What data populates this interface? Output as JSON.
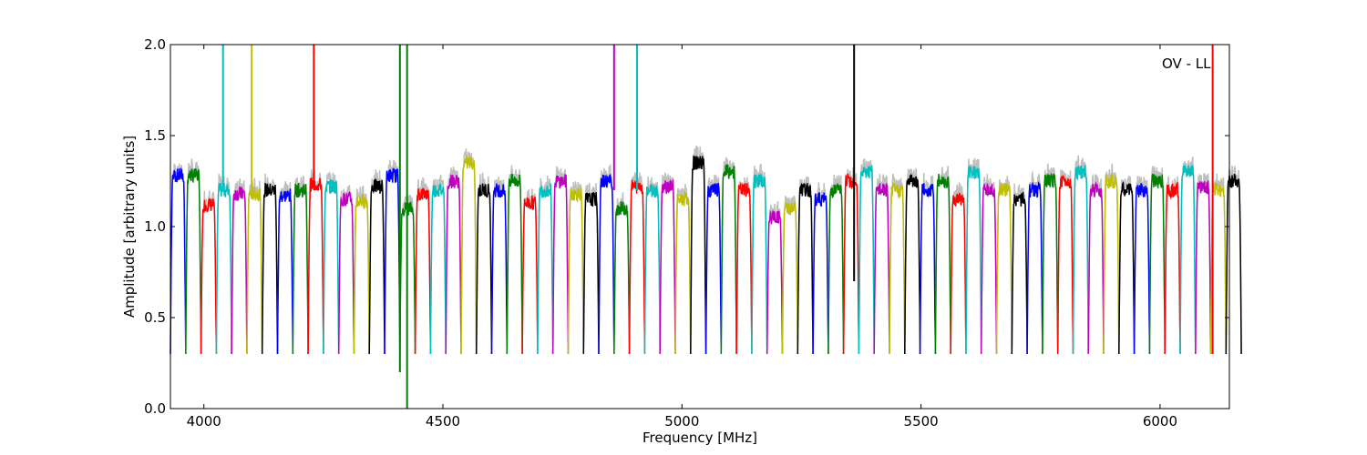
{
  "chart_data": {
    "type": "line",
    "title": "",
    "xlabel": "Frequency [MHz]",
    "ylabel": "Amplitude [arbitrary units]",
    "xlim": [
      3930,
      6145
    ],
    "ylim": [
      0.0,
      2.0
    ],
    "xticks": [
      4000,
      4500,
      5000,
      5500,
      6000
    ],
    "yticks": [
      0.0,
      0.5,
      1.0,
      1.5,
      2.0
    ],
    "ytick_labels": [
      "0.0",
      "0.5",
      "1.0",
      "1.5",
      "2.0"
    ],
    "annotation": "OV - LL",
    "grid": false,
    "legend": "none",
    "color_cycle": [
      "#0000ff",
      "#008000",
      "#ff0000",
      "#00bfbf",
      "#bf00bf",
      "#bfbf00",
      "#000000"
    ],
    "shadow_color": "#bfbfbf",
    "band_start_mhz": 3930,
    "band_width_mhz": 32,
    "band_plateau_levels": [
      1.28,
      1.28,
      1.12,
      1.2,
      1.18,
      1.18,
      1.2,
      1.17,
      1.2,
      1.23,
      1.22,
      1.15,
      1.14,
      1.22,
      1.28,
      1.1,
      1.18,
      1.2,
      1.25,
      1.35,
      1.2,
      1.2,
      1.25,
      1.13,
      1.2,
      1.25,
      1.18,
      1.15,
      1.25,
      1.1,
      1.22,
      1.2,
      1.22,
      1.15,
      1.35,
      1.2,
      1.3,
      1.2,
      1.25,
      1.05,
      1.1,
      1.2,
      1.15,
      1.2,
      1.25,
      1.3,
      1.2,
      1.2,
      1.25,
      1.2,
      1.25,
      1.15,
      1.3,
      1.2,
      1.2,
      1.15,
      1.2,
      1.25,
      1.25,
      1.3,
      1.2,
      1.25,
      1.2,
      1.2,
      1.25,
      1.2,
      1.3,
      1.22,
      1.2,
      1.25
    ],
    "band_dip_min": 0.3,
    "spikes": [
      {
        "x": 4040,
        "y_min": 1.2,
        "y_max": 2.0,
        "color": "#00bfbf"
      },
      {
        "x": 4100,
        "y_min": 1.2,
        "y_max": 2.0,
        "color": "#bfbf00"
      },
      {
        "x": 4230,
        "y_min": 1.2,
        "y_max": 2.0,
        "color": "#ff0000"
      },
      {
        "x": 4410,
        "y_min": 0.2,
        "y_max": 2.0,
        "color": "#008000"
      },
      {
        "x": 4425,
        "y_min": 0.0,
        "y_max": 2.0,
        "color": "#008000"
      },
      {
        "x": 4858,
        "y_min": 1.2,
        "y_max": 2.0,
        "color": "#bf00bf"
      },
      {
        "x": 4906,
        "y_min": 1.2,
        "y_max": 2.0,
        "color": "#00bfbf"
      },
      {
        "x": 5360,
        "y_min": 0.7,
        "y_max": 2.0,
        "color": "#000000"
      },
      {
        "x": 6110,
        "y_min": 0.3,
        "y_max": 2.0,
        "color": "#ff0000"
      }
    ]
  }
}
